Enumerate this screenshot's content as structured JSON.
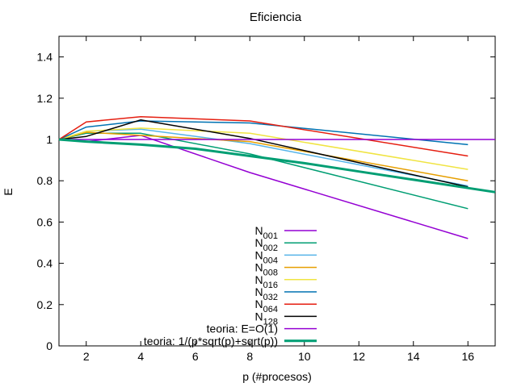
{
  "chart_data": {
    "type": "line",
    "title": "Eficiencia",
    "xlabel": "p (#procesos)",
    "ylabel": "E",
    "xlim": [
      1,
      17
    ],
    "ylim": [
      0,
      1.5
    ],
    "xticks": [
      2,
      4,
      6,
      8,
      10,
      12,
      14,
      16
    ],
    "yticks": [
      0,
      0.2,
      0.4,
      0.6,
      0.8,
      1,
      1.2,
      1.4
    ],
    "xtick_labels": [
      "2",
      "4",
      "6",
      "8",
      "10",
      "12",
      "14",
      "16"
    ],
    "ytick_labels": [
      "0",
      "0.2",
      "0.4",
      "0.6",
      "0.8",
      "1",
      "1.2",
      "1.4"
    ],
    "grid": false,
    "legend_position": "bottom-center",
    "series": [
      {
        "name": "N001",
        "base": "N",
        "sub": "001",
        "color": "#9400d3",
        "width": 1.5,
        "x": [
          1,
          2,
          4,
          8,
          16
        ],
        "y": [
          1.0,
          0.99,
          1.02,
          0.84,
          0.52
        ]
      },
      {
        "name": "N002",
        "base": "N",
        "sub": "002",
        "color": "#009e73",
        "width": 1.5,
        "x": [
          1,
          2,
          4,
          8,
          16
        ],
        "y": [
          1.0,
          1.03,
          1.03,
          0.93,
          0.665
        ]
      },
      {
        "name": "N004",
        "base": "N",
        "sub": "004",
        "color": "#56b4e9",
        "width": 1.5,
        "x": [
          1,
          2,
          4,
          8,
          16
        ],
        "y": [
          1.0,
          1.04,
          1.05,
          0.98,
          0.775
        ]
      },
      {
        "name": "N008",
        "base": "N",
        "sub": "008",
        "color": "#e69f00",
        "width": 1.5,
        "x": [
          1,
          2,
          4,
          8,
          16
        ],
        "y": [
          1.0,
          1.035,
          1.02,
          0.99,
          0.8
        ]
      },
      {
        "name": "N016",
        "base": "N",
        "sub": "016",
        "color": "#f0e442",
        "width": 1.5,
        "x": [
          1,
          2,
          4,
          8,
          16
        ],
        "y": [
          1.0,
          1.04,
          1.055,
          1.03,
          0.855
        ]
      },
      {
        "name": "N032",
        "base": "N",
        "sub": "032",
        "color": "#0072b2",
        "width": 1.5,
        "x": [
          1,
          2,
          4,
          8,
          16
        ],
        "y": [
          1.0,
          1.06,
          1.09,
          1.08,
          0.975
        ]
      },
      {
        "name": "N064",
        "base": "N",
        "sub": "064",
        "color": "#e51e10",
        "width": 1.5,
        "x": [
          1,
          2,
          4,
          8,
          16
        ],
        "y": [
          1.0,
          1.085,
          1.11,
          1.09,
          0.92
        ]
      },
      {
        "name": "N128",
        "base": "N",
        "sub": "128",
        "color": "#000000",
        "width": 1.5,
        "x": [
          1,
          2,
          4,
          8,
          16
        ],
        "y": [
          1.0,
          1.015,
          1.095,
          1.005,
          0.77
        ]
      },
      {
        "name": "teoria: E=O(1)",
        "base": "teoria: E=O(1)",
        "sub": "",
        "color": "#9400d3",
        "width": 1.5,
        "x": [
          1,
          17
        ],
        "y": [
          1.0,
          1.0
        ]
      },
      {
        "name": "teoria: 1/(p*sqrt(p)+sqrt(p))",
        "base": "teoria: 1/(p*sqrt(p)+sqrt(p))",
        "sub": "",
        "color": "#009e73",
        "width": 3,
        "x": [
          1,
          2,
          4,
          6,
          8,
          10,
          12,
          14,
          16,
          17
        ],
        "y": [
          1.0,
          0.99,
          0.975,
          0.955,
          0.92,
          0.885,
          0.845,
          0.805,
          0.765,
          0.745
        ]
      }
    ]
  }
}
